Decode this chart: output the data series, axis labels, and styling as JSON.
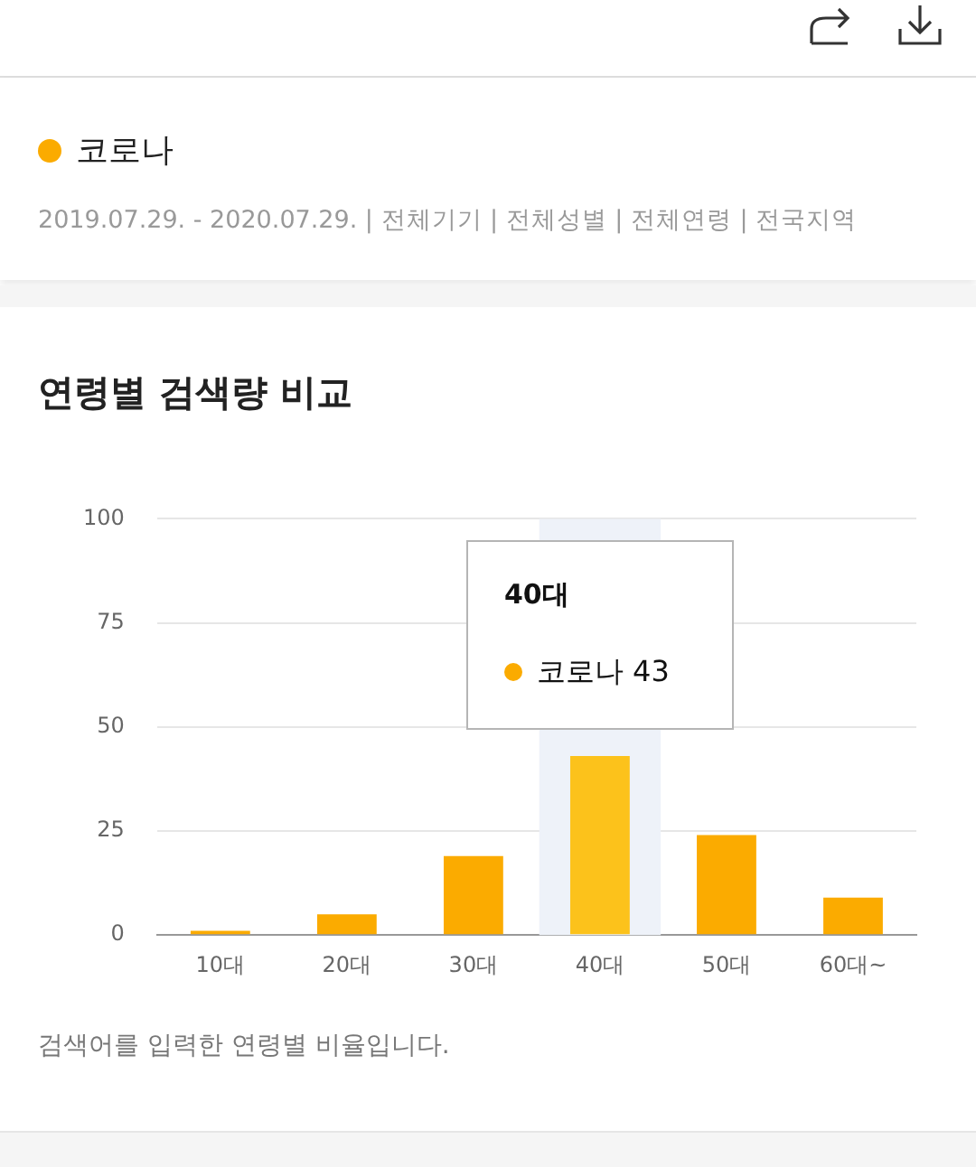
{
  "chart_data": {
    "type": "bar",
    "title": "연령별 검색량 비교",
    "subtitle": "2019.07.29. - 2020.07.29. | 전체기기 | 전체성별 | 전체연령 | 전국지역",
    "categories": [
      "10대",
      "20대",
      "30대",
      "40대",
      "50대",
      "60대~"
    ],
    "series": [
      {
        "name": "코로나",
        "color": "#fbab00",
        "colors": [
          "#fbab00",
          "#fbab00",
          "#fbab00",
          "#fcc21b",
          "#fbab00",
          "#fbab00"
        ],
        "values": [
          1,
          5,
          19,
          43,
          24,
          9
        ]
      }
    ],
    "ylim": [
      0,
      100
    ],
    "yticks": [
      0,
      25,
      50,
      75,
      100
    ],
    "grid": "y",
    "legend": "top left",
    "bands": [
      {
        "axis": "x",
        "from": "40대",
        "to": "40대",
        "color": "#eef2f9"
      }
    ],
    "annotations": [
      {
        "text": "코로나 43",
        "x": "40대",
        "y": 43
      },
      "검색어를 입력한 연령별 비율입니다."
    ]
  }
}
